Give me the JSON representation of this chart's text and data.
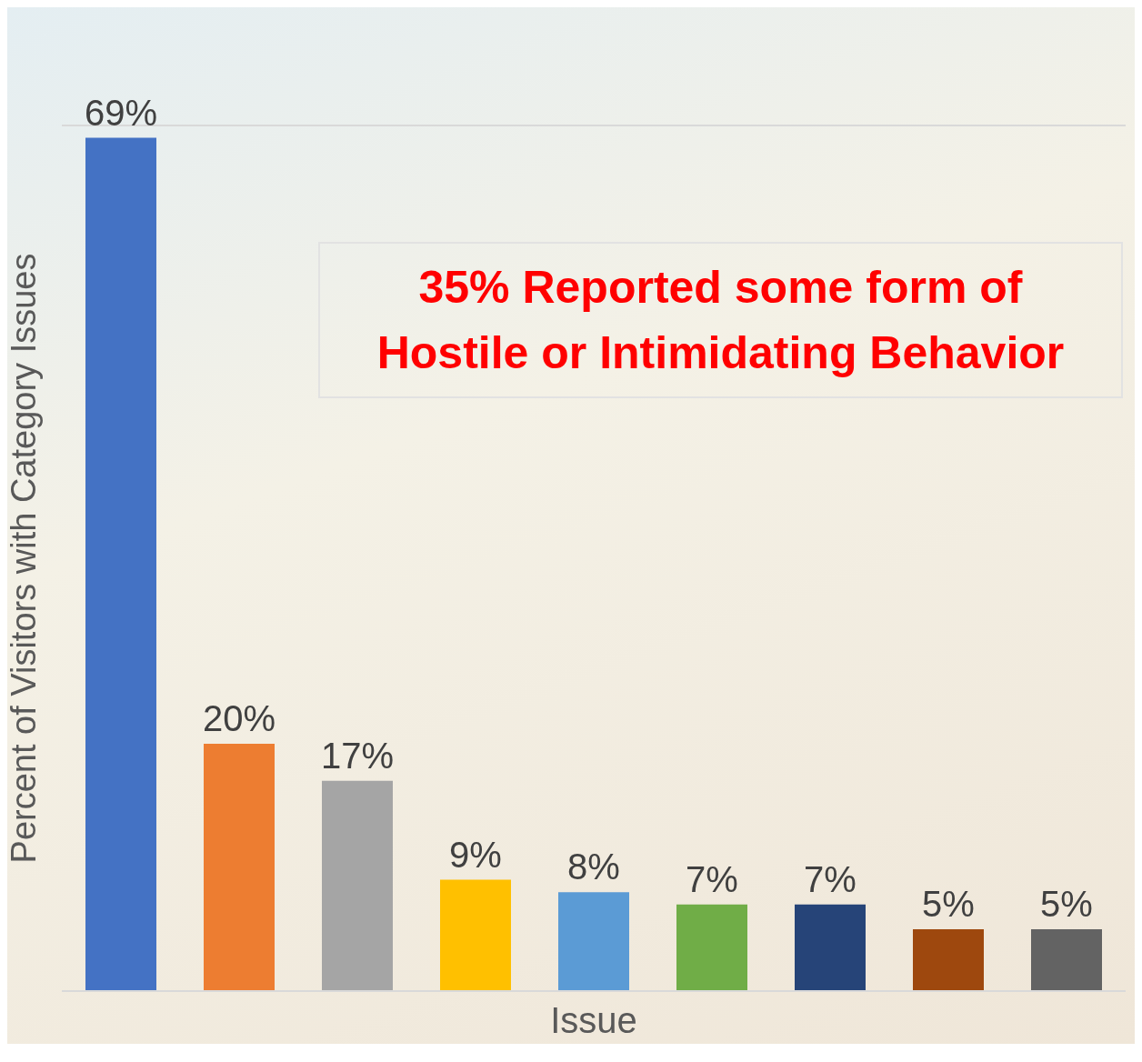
{
  "chart_data": {
    "type": "bar",
    "xlabel": "Issue",
    "ylabel": "Percent of Visitors with Category Issues",
    "annotations": [
      "35% Reported some form of Hostile or Intimidating Behavior"
    ],
    "categories": [
      null,
      null,
      null,
      null,
      null,
      null,
      null,
      null,
      null
    ],
    "values": [
      69,
      20,
      17,
      9,
      8,
      7,
      7,
      5,
      5
    ],
    "value_labels": [
      "69%",
      "20%",
      "17%",
      "9%",
      "8%",
      "7%",
      "7%",
      "5%",
      "5%"
    ],
    "colors": [
      "#4472c4",
      "#ed7d31",
      "#a5a5a5",
      "#ffc000",
      "#5b9bd5",
      "#70ad47",
      "#264478",
      "#9e480e",
      "#636363"
    ],
    "ylim": [
      0,
      70
    ],
    "grid": "y",
    "tick_labels": false
  }
}
